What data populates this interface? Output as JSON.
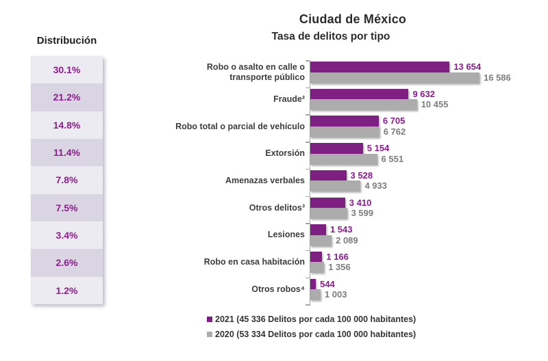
{
  "header": {
    "title": "Ciudad de México",
    "subtitle": "Tasa de delitos por tipo"
  },
  "distribution": {
    "header": "Distribución",
    "values": [
      "30.1%",
      "21.2%",
      "14.8%",
      "11.4%",
      "7.8%",
      "7.5%",
      "3.4%",
      "2.6%",
      "1.2%"
    ]
  },
  "chart_data": {
    "type": "bar",
    "orientation": "horizontal",
    "title": "Ciudad de México",
    "subtitle": "Tasa de delitos por tipo",
    "categories": [
      "Robo o asalto en calle o\ntransporte público",
      "Fraude²",
      "Robo total o parcial de vehículo",
      "Extorsión",
      "Amenazas verbales",
      "Otros delitos³",
      "Lesiones",
      "Robo en casa habitación",
      "Otros robos⁴"
    ],
    "series": [
      {
        "name": "2021",
        "color": "#7d2081",
        "values": [
          13654,
          9632,
          6705,
          5154,
          3528,
          3410,
          1543,
          1166,
          544
        ],
        "value_labels": [
          "13 654",
          "9 632",
          "6 705",
          "5 154",
          "3 528",
          "3 410",
          "1 543",
          "1 166",
          "544"
        ]
      },
      {
        "name": "2020",
        "color": "#acacac",
        "values": [
          16586,
          10455,
          6762,
          6551,
          4933,
          3599,
          2089,
          1356,
          1003
        ],
        "value_labels": [
          "16 586",
          "10 455",
          "6 762",
          "6 551",
          "4 933",
          "3 599",
          "2 089",
          "1 356",
          "1 003"
        ]
      }
    ],
    "xlim": [
      0,
      16586
    ],
    "grid": false,
    "legend_position": "bottom"
  },
  "legend": {
    "items": [
      {
        "label": "2021 (45 336 Delitos por cada 100 000 habitantes)",
        "color": "#7d2081"
      },
      {
        "label": "2020 (53 334 Delitos por cada 100 000 habitantes)",
        "color": "#acacac"
      }
    ]
  },
  "colors": {
    "bar_2021": "#7d2081",
    "bar_2020": "#acacac",
    "value_text_2021": "#8e1a90",
    "value_text_2020": "#7c7c7c",
    "distribution_text": "#8c1d8c",
    "row_light": "#edebf2",
    "row_dark": "#d9d5e2",
    "axis": "#a6a6a6",
    "title_text": "#2b2b2b",
    "label_text": "#3d3d3d"
  }
}
